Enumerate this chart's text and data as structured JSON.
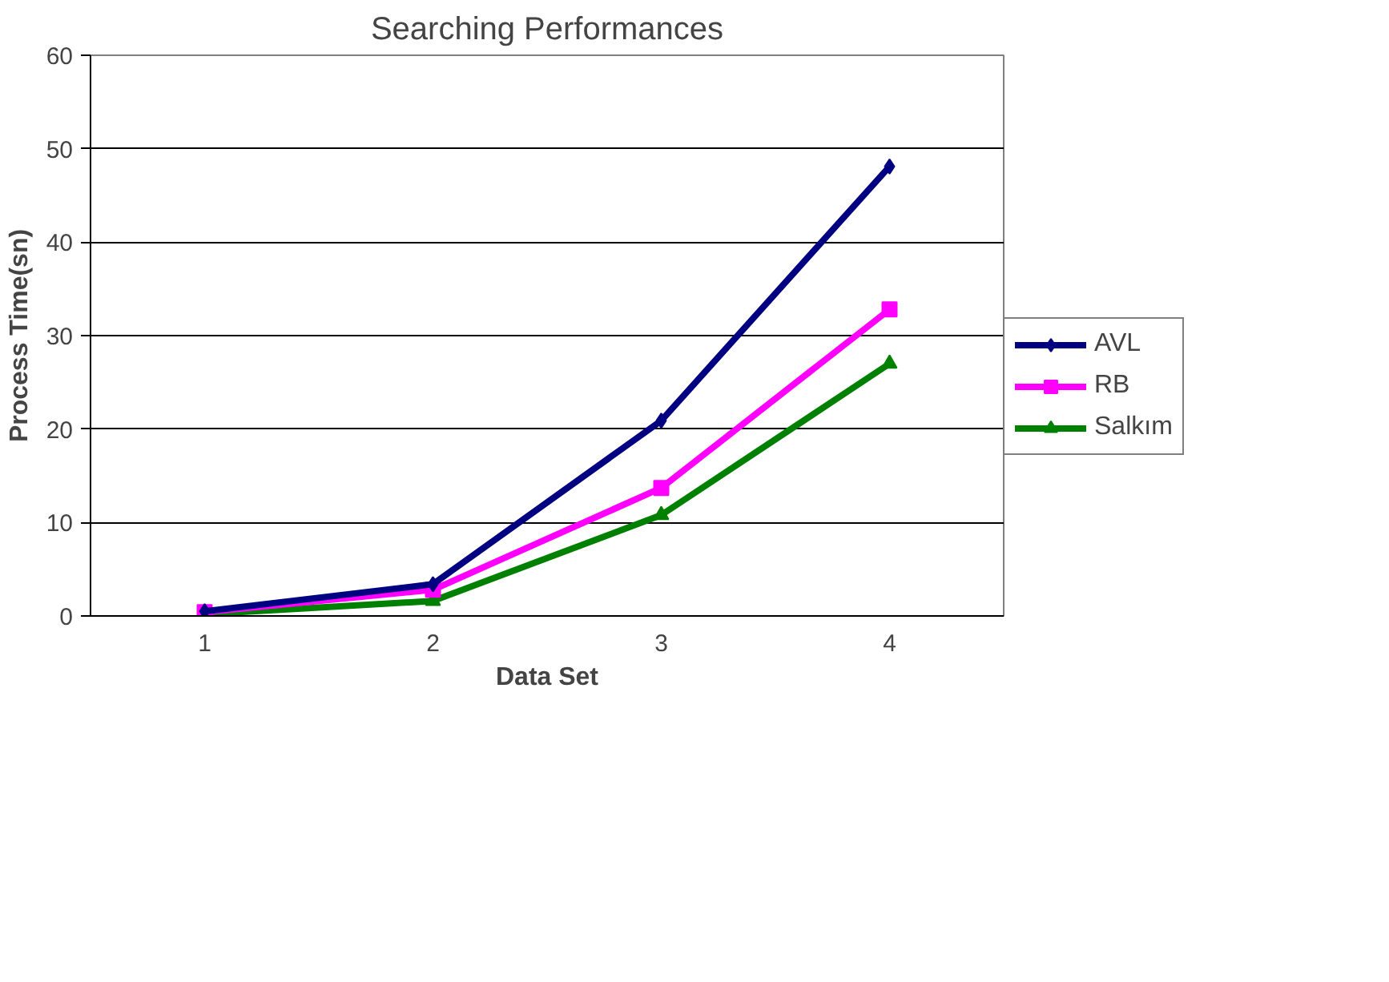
{
  "chart_data": {
    "type": "line",
    "title": "Searching Performances",
    "xlabel": "Data Set",
    "ylabel": "Process Time(sn)",
    "categories": [
      "1",
      "2",
      "3",
      "4"
    ],
    "series": [
      {
        "name": "AVL",
        "color": "#000080",
        "values": [
          0.5,
          3.4,
          20.9,
          48.1
        ],
        "marker": "diamond"
      },
      {
        "name": "RB",
        "color": "#ff00ff",
        "values": [
          0.4,
          2.8,
          13.7,
          32.8
        ],
        "marker": "square"
      },
      {
        "name": "Salkım",
        "color": "#008000",
        "values": [
          0.2,
          1.6,
          10.8,
          27
        ],
        "marker": "triangle"
      }
    ],
    "ylim": [
      0,
      60
    ],
    "yticks": [
      0,
      10,
      20,
      30,
      40,
      50,
      60
    ],
    "grid": "y",
    "legend": "right",
    "line_style": "solid"
  }
}
